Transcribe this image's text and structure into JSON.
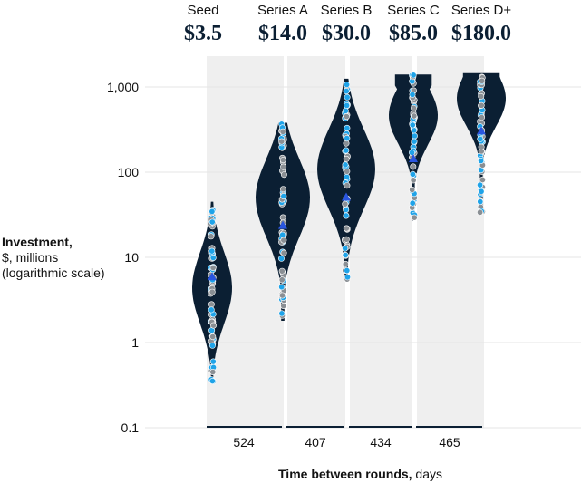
{
  "chart_data": {
    "type": "violin",
    "y_axis": {
      "label_bold": "Investment,",
      "label_lines": [
        "$, millions",
        "(logarithmic scale)"
      ],
      "scale": "log",
      "ticks": [
        0.1,
        1,
        10,
        100,
        1000
      ],
      "tick_labels": [
        "0.1",
        "1",
        "10",
        "100",
        "1,000"
      ],
      "grid": true
    },
    "x_axis": {
      "label_bold": "Time between rounds,",
      "label_rest": " days",
      "gap_labels": [
        "524",
        "407",
        "434",
        "465"
      ],
      "gaps_days": [
        524,
        407,
        434,
        465
      ]
    },
    "rounds": [
      {
        "name": "Seed",
        "median_label": "$3.5",
        "median": 3.5,
        "min": 0.35,
        "max": 45
      },
      {
        "name": "Series A",
        "median_label": "$14.0",
        "median": 14.0,
        "min": 1.8,
        "max": 380
      },
      {
        "name": "Series B",
        "median_label": "$30.0",
        "median": 30.0,
        "min": 5.5,
        "max": 1250
      },
      {
        "name": "Series C",
        "median_label": "$85.0",
        "median": 85.0,
        "min": 27,
        "max": 1400
      },
      {
        "name": "Series D+",
        "median_label": "$180.0",
        "median": 180.0,
        "min": 33,
        "max": 1450
      }
    ],
    "colors": {
      "violin": "#0b1f33",
      "dot_light": "#1fa3e8",
      "dot_grey": "#8a8f94",
      "mean_marker": "#2a56e0",
      "band": "#efefef",
      "grid": "#e6e6e6"
    }
  }
}
